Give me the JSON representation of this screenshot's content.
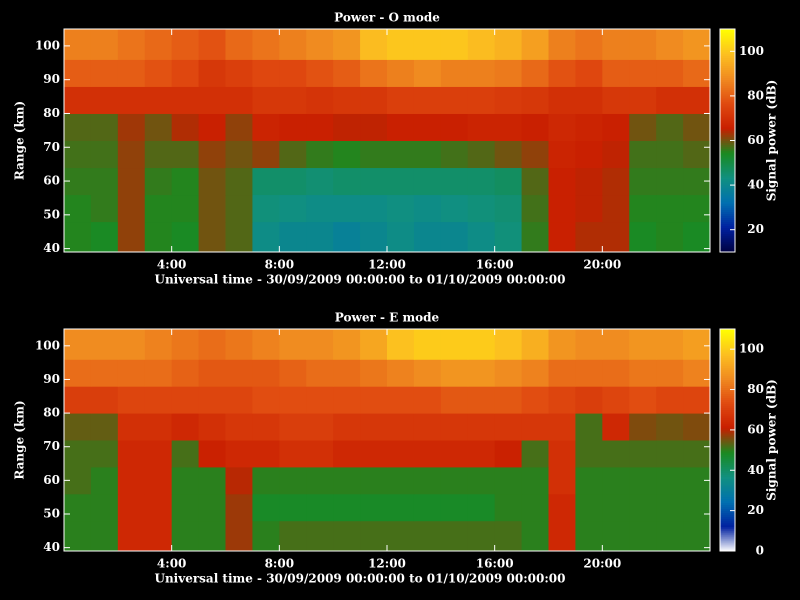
{
  "chart_data": [
    {
      "type": "heatmap",
      "title": "Power - O mode",
      "x_label": "Universal time - 30/09/2009 00:00:00 to 01/10/2009 00:00:00",
      "y_label": "Range (km)",
      "colorbar_label": "Signal power (dB)",
      "x_edges": [
        0,
        1,
        2,
        3,
        4,
        5,
        6,
        7,
        8,
        9,
        10,
        11,
        12,
        13,
        14,
        15,
        16,
        17,
        18,
        19,
        20,
        21,
        22,
        23,
        24
      ],
      "y_edges": [
        39,
        48,
        56,
        64,
        72,
        80,
        88,
        96,
        105
      ],
      "values": [
        [
          55,
          54,
          62,
          55,
          54,
          60,
          58,
          42,
          40,
          40,
          38,
          40,
          42,
          40,
          40,
          42,
          44,
          56,
          66,
          64,
          64,
          54,
          55,
          54
        ],
        [
          55,
          56,
          62,
          55,
          55,
          60,
          58,
          44,
          43,
          42,
          42,
          42,
          43,
          42,
          43,
          44,
          45,
          57,
          66,
          65,
          64,
          55,
          55,
          55
        ],
        [
          56,
          56,
          62,
          56,
          55,
          60,
          58,
          46,
          46,
          45,
          46,
          46,
          46,
          46,
          46,
          46,
          47,
          58,
          66,
          65,
          64,
          56,
          56,
          56
        ],
        [
          57,
          57,
          62,
          58,
          58,
          62,
          60,
          62,
          58,
          56,
          55,
          56,
          56,
          56,
          57,
          58,
          60,
          62,
          67,
          66,
          65,
          57,
          57,
          58
        ],
        [
          58,
          58,
          63,
          60,
          64,
          66,
          62,
          67,
          66,
          66,
          65,
          65,
          66,
          66,
          66,
          67,
          67,
          66,
          68,
          67,
          66,
          60,
          58,
          60
        ],
        [
          70,
          70,
          70,
          70,
          70,
          70,
          70,
          72,
          72,
          71,
          72,
          72,
          74,
          74,
          74,
          74,
          73,
          72,
          70,
          70,
          72,
          72,
          70,
          70
        ],
        [
          80,
          80,
          80,
          78,
          76,
          72,
          74,
          76,
          76,
          78,
          80,
          84,
          86,
          88,
          86,
          86,
          85,
          82,
          78,
          76,
          80,
          80,
          80,
          82
        ],
        [
          86,
          86,
          84,
          82,
          80,
          78,
          82,
          84,
          86,
          88,
          90,
          98,
          100,
          100,
          100,
          98,
          96,
          92,
          86,
          84,
          86,
          86,
          88,
          90
        ]
      ],
      "xlim": [
        0,
        24
      ],
      "ylim": [
        39,
        105
      ],
      "xticks": [
        {
          "value": 4,
          "label": "4:00"
        },
        {
          "value": 8,
          "label": "8:00"
        },
        {
          "value": 12,
          "label": "12:00"
        },
        {
          "value": 16,
          "label": "16:00"
        },
        {
          "value": 20,
          "label": "20:00"
        }
      ],
      "yticks": [
        40,
        50,
        60,
        70,
        80,
        90,
        100
      ],
      "clim": [
        10,
        110
      ],
      "cticks": [
        20,
        40,
        60,
        80,
        100
      ],
      "colormap": [
        "#000040",
        "#0020a0",
        "#0070b0",
        "#109080",
        "#1a8a20",
        "#c81e00",
        "#e04a10",
        "#f08a20",
        "#fcc020",
        "#ffff00"
      ]
    },
    {
      "type": "heatmap",
      "title": "Power - E mode",
      "x_label": "Universal time - 30/09/2009 00:00:00 to 01/10/2009 00:00:00",
      "y_label": "Range (km)",
      "colorbar_label": "Signal power (dB)",
      "x_edges": [
        0,
        1,
        2,
        3,
        4,
        5,
        6,
        7,
        8,
        9,
        10,
        11,
        12,
        13,
        14,
        15,
        16,
        17,
        18,
        19,
        20,
        21,
        22,
        23,
        24
      ],
      "y_edges": [
        39,
        48,
        56,
        64,
        72,
        80,
        88,
        96,
        105
      ],
      "values": [
        [
          50,
          50,
          64,
          64,
          50,
          50,
          58,
          50,
          52,
          52,
          52,
          52,
          52,
          52,
          52,
          52,
          52,
          50,
          64,
          50,
          50,
          50,
          50,
          50
        ],
        [
          50,
          50,
          64,
          64,
          50,
          50,
          58,
          48,
          48,
          48,
          48,
          48,
          48,
          48,
          48,
          48,
          50,
          50,
          64,
          50,
          50,
          50,
          50,
          50
        ],
        [
          52,
          50,
          64,
          64,
          50,
          50,
          60,
          50,
          50,
          50,
          50,
          50,
          50,
          50,
          50,
          50,
          50,
          50,
          66,
          50,
          50,
          50,
          50,
          50
        ],
        [
          52,
          52,
          64,
          64,
          52,
          62,
          64,
          64,
          66,
          66,
          64,
          64,
          64,
          64,
          64,
          64,
          62,
          52,
          66,
          52,
          52,
          52,
          52,
          52
        ],
        [
          54,
          54,
          66,
          66,
          64,
          66,
          68,
          68,
          70,
          70,
          68,
          68,
          68,
          68,
          68,
          68,
          68,
          68,
          68,
          52,
          64,
          56,
          55,
          56
        ],
        [
          70,
          70,
          72,
          72,
          72,
          72,
          72,
          74,
          74,
          74,
          74,
          74,
          74,
          74,
          76,
          76,
          76,
          74,
          72,
          70,
          72,
          74,
          72,
          72
        ],
        [
          80,
          80,
          80,
          80,
          78,
          76,
          76,
          76,
          78,
          80,
          80,
          82,
          84,
          86,
          88,
          88,
          86,
          84,
          80,
          80,
          80,
          82,
          82,
          84
        ],
        [
          86,
          86,
          86,
          84,
          82,
          80,
          82,
          84,
          86,
          86,
          88,
          92,
          98,
          100,
          100,
          100,
          98,
          94,
          88,
          86,
          86,
          88,
          88,
          90
        ]
      ],
      "xlim": [
        0,
        24
      ],
      "ylim": [
        39,
        105
      ],
      "xticks": [
        {
          "value": 4,
          "label": "4:00"
        },
        {
          "value": 8,
          "label": "8:00"
        },
        {
          "value": 12,
          "label": "12:00"
        },
        {
          "value": 16,
          "label": "16:00"
        },
        {
          "value": 20,
          "label": "20:00"
        }
      ],
      "yticks": [
        40,
        50,
        60,
        70,
        80,
        90,
        100
      ],
      "clim": [
        0,
        110
      ],
      "cticks": [
        0,
        20,
        40,
        60,
        80,
        100
      ],
      "colormap": [
        "#ffffff",
        "#0020a0",
        "#0070b0",
        "#109080",
        "#1a8a20",
        "#c81e00",
        "#e04a10",
        "#f08a20",
        "#fcc020",
        "#ffff00"
      ]
    }
  ]
}
